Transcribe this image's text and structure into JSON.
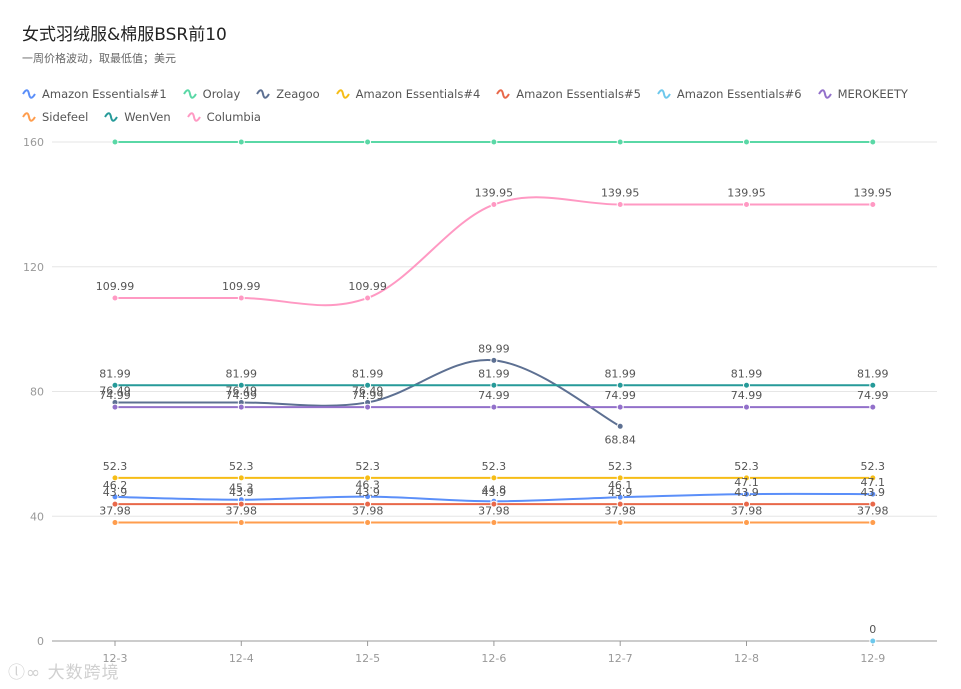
{
  "title": "女式羽绒服&棉服BSR前10",
  "subtitle": "一周价格波动，取最低值；美元",
  "watermark": "大数跨境",
  "chart_data": {
    "type": "line",
    "categories": [
      "12-3",
      "12-4",
      "12-5",
      "12-6",
      "12-7",
      "12-8",
      "12-9"
    ],
    "ylim": [
      0,
      160
    ],
    "yticks": [
      0,
      40,
      80,
      120,
      160
    ],
    "grid": true,
    "legend_position": "top-left",
    "series": [
      {
        "name": "Amazon Essentials#1",
        "color": "#5b8ff9",
        "values": [
          46.2,
          45.3,
          46.3,
          44.8,
          46.1,
          47.1,
          47.1
        ]
      },
      {
        "name": "Orolay",
        "color": "#5ad8a6",
        "values": [
          159.99,
          159.99,
          159.99,
          159.99,
          159.99,
          159.99,
          159.99
        ]
      },
      {
        "name": "Zeagoo",
        "color": "#5d7092",
        "values": [
          76.49,
          76.49,
          76.49,
          89.99,
          68.84,
          null,
          null
        ]
      },
      {
        "name": "Amazon Essentials#4",
        "color": "#f6bd16",
        "values": [
          52.3,
          52.3,
          52.3,
          52.3,
          52.3,
          52.3,
          52.3
        ]
      },
      {
        "name": "Amazon Essentials#5",
        "color": "#e8684a",
        "values": [
          43.9,
          43.9,
          43.9,
          43.9,
          43.9,
          43.9,
          43.9
        ]
      },
      {
        "name": "Amazon Essentials#6",
        "color": "#6dc8ec",
        "values": [
          null,
          null,
          null,
          null,
          null,
          null,
          0
        ]
      },
      {
        "name": "MEROKEETY",
        "color": "#9270ca",
        "values": [
          74.99,
          74.99,
          74.99,
          74.99,
          74.99,
          74.99,
          74.99
        ]
      },
      {
        "name": "Sidefeel",
        "color": "#ff9d4d",
        "values": [
          37.98,
          37.98,
          37.98,
          37.98,
          37.98,
          37.98,
          37.98
        ]
      },
      {
        "name": "WenVen",
        "color": "#269a99",
        "values": [
          81.99,
          81.99,
          81.99,
          81.99,
          81.99,
          81.99,
          81.99
        ]
      },
      {
        "name": "Columbia",
        "color": "#ff99c3",
        "values": [
          109.99,
          109.99,
          109.99,
          139.95,
          139.95,
          139.95,
          139.95
        ]
      }
    ]
  }
}
